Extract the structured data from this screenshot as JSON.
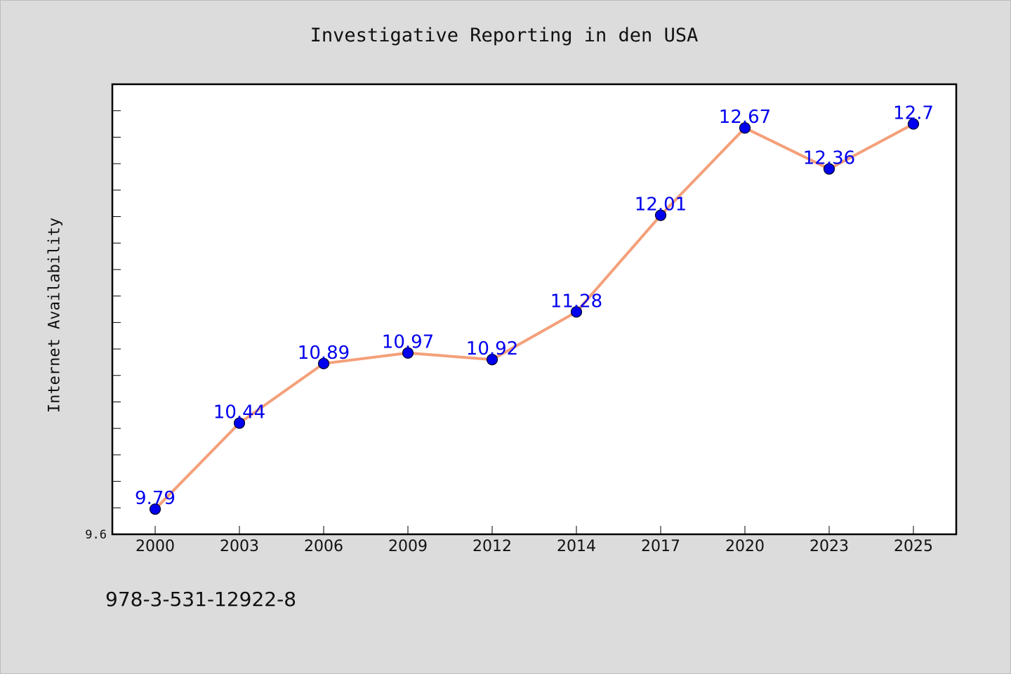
{
  "chart_data": {
    "type": "line",
    "title": "Investigative Reporting in den USA",
    "xlabel": "",
    "ylabel": "Internet Availability",
    "categories": [
      "2000",
      "2003",
      "2006",
      "2009",
      "2012",
      "2014",
      "2017",
      "2020",
      "2023",
      "2025"
    ],
    "series": [
      {
        "values": [
          9.79,
          10.44,
          10.89,
          10.97,
          10.92,
          11.28,
          12.01,
          12.67,
          12.36,
          12.7
        ]
      }
    ],
    "y_tick_labels": [
      "9.6"
    ],
    "ylim": [
      9.6,
      13.0
    ],
    "grid": false,
    "legend": "none",
    "colors": {
      "line": "#f4a07a",
      "marker": "#0000ee",
      "data_label": "#0000ee",
      "plot_background": "#ffffff",
      "figure_background": "#dcdcdc"
    }
  },
  "footer": {
    "code": "978-3-531-12922-8"
  }
}
